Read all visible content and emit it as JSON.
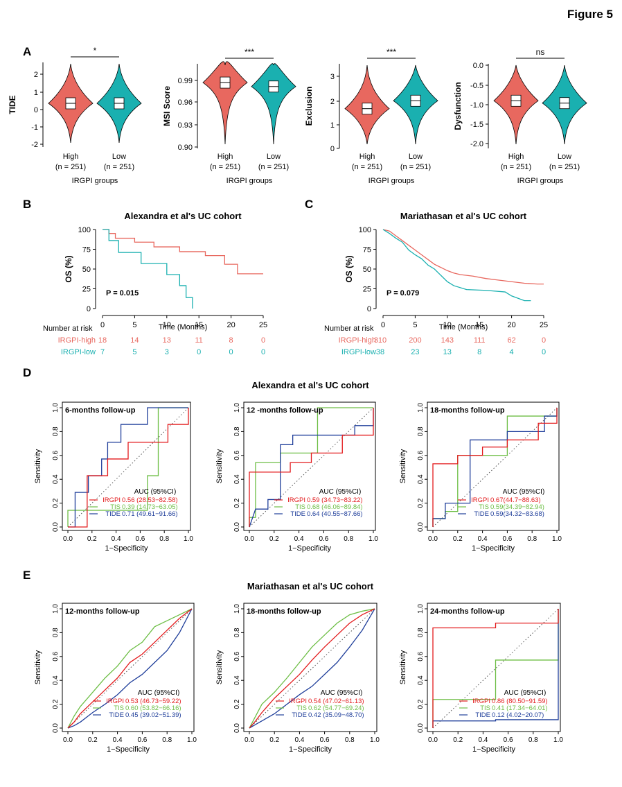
{
  "figure_title": "Figure 5",
  "panels": {
    "A": "A",
    "B": "B",
    "C": "C",
    "D": "D",
    "E": "E"
  },
  "colors": {
    "high": "#E8685F",
    "low": "#1AB0B0",
    "irgpi": "#E31A1C",
    "tis": "#6DBE45",
    "tide": "#1F3E9A",
    "ci_text_high": "#E8685F",
    "ci_text_low": "#1AB0B0"
  },
  "panelA": {
    "xlabel": "IRGPI groups",
    "group_labels": [
      [
        "High",
        "(n = 251)"
      ],
      [
        "Low",
        "(n = 251)"
      ]
    ],
    "plots": [
      {
        "ylabel": "TIDE",
        "sig": "*",
        "ticks": [
          "2",
          "1",
          "0",
          "-1",
          "-2"
        ]
      },
      {
        "ylabel": "MSI Score",
        "sig": "***",
        "ticks": [
          "0.99",
          "0.96",
          "0.93",
          "0.90"
        ]
      },
      {
        "ylabel": "Exclusion",
        "sig": "***",
        "ticks": [
          "3",
          "2",
          "1",
          "0"
        ]
      },
      {
        "ylabel": "Dysfunction",
        "sig": "ns",
        "ticks": [
          "0.0",
          "-0.5",
          "-1.0",
          "-1.5",
          "-2.0"
        ]
      }
    ]
  },
  "km": {
    "ylabel": "OS (%)",
    "xlabel": "Time (Months)",
    "yticks": [
      "100",
      "75",
      "50",
      "25",
      "0"
    ],
    "xticks": [
      "0",
      "5",
      "10",
      "15",
      "20",
      "25"
    ],
    "risk_title": "Number at risk",
    "plots": [
      {
        "title": "Alexandra et al's UC cohort",
        "pvalue": "P = 0.015",
        "risk_rows": [
          {
            "label": "IRGPI-high",
            "values": [
              "18",
              "14",
              "13",
              "11",
              "8",
              "0"
            ]
          },
          {
            "label": "IRGPI-low",
            "values": [
              "7",
              "5",
              "3",
              "0",
              "0",
              "0"
            ]
          }
        ]
      },
      {
        "title": "Mariathasan et al's UC cohort",
        "pvalue": "P = 0.079",
        "risk_rows": [
          {
            "label": "IRGPI-high",
            "values": [
              "310",
              "200",
              "143",
              "111",
              "62",
              "0"
            ]
          },
          {
            "label": "IRGPI-low",
            "values": [
              "38",
              "23",
              "13",
              "8",
              "4",
              "0"
            ]
          }
        ]
      }
    ]
  },
  "roc": {
    "ylabel": "Sensitivity",
    "xlabel": "1−Specificity",
    "ticks": [
      "0.0",
      "0.2",
      "0.4",
      "0.6",
      "0.8",
      "1.0"
    ],
    "auc_title": "AUC (95%CI)",
    "cohort_D": "Alexandra et al's UC cohort",
    "cohort_E": "Mariathasan et al's UC cohort",
    "plots": [
      {
        "title": "6-months follow-up",
        "rows": [
          [
            "IRGPI",
            "0.56 (28.53−82.58)"
          ],
          [
            "TIS",
            "0.39 (14.73−63.05)"
          ],
          [
            "TIDE",
            "0.71 (49.61−91.66)"
          ]
        ]
      },
      {
        "title": "12 -months follow-up",
        "rows": [
          [
            "IRGPI",
            "0.59 (34.73−83.22)"
          ],
          [
            "TIS",
            "0.68 (46.06−89.84)"
          ],
          [
            "TIDE",
            "0.64 (40.55−87.66)"
          ]
        ]
      },
      {
        "title": "18-months follow-up",
        "rows": [
          [
            "IRGPI",
            "0.67(44.7−88.63)"
          ],
          [
            "TIS",
            "0.59(34.39−82.94)"
          ],
          [
            "TIDE",
            "0.59(34.32−83.68)"
          ]
        ]
      },
      {
        "title": "12-months follow-up",
        "rows": [
          [
            "IRGPI",
            "0.53 (46.73−59.22)"
          ],
          [
            "TIS",
            "0.60 (53.82−66.16)"
          ],
          [
            "TIDE",
            "0.45 (39.02−51.39)"
          ]
        ]
      },
      {
        "title": "18-months follow-up",
        "rows": [
          [
            "IRGPI",
            "0.54 (47.02−61.13)"
          ],
          [
            "TIS",
            "0.62 (54.77−69.24)"
          ],
          [
            "TIDE",
            "0.42 (35.09−48.70)"
          ]
        ]
      },
      {
        "title": "24-months follow-up",
        "rows": [
          [
            "IRGPI",
            "0.86 (80.50−91.59)"
          ],
          [
            "TIS",
            "0.41 (17.34−64.01)"
          ],
          [
            "TIDE",
            "0.12 (4.02−20.07)"
          ]
        ]
      }
    ]
  }
}
